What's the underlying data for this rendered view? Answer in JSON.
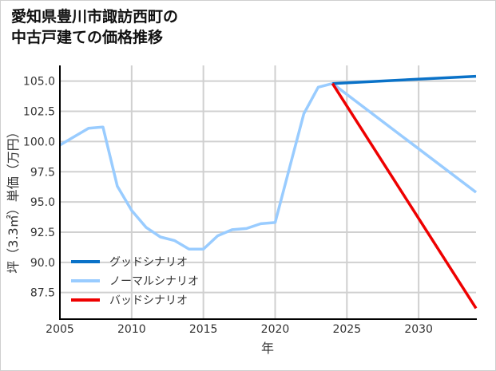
{
  "title_line1": "愛知県豊川市諏訪西町の",
  "title_line2": "中古戸建ての価格推移",
  "chart_data": {
    "type": "line",
    "title": "愛知県豊川市諏訪西町の中古戸建ての価格推移",
    "xlabel": "年",
    "ylabel": "坪（3.3㎡）単価（万円）",
    "xlim": [
      2005,
      2034
    ],
    "ylim": [
      85.3,
      106.3
    ],
    "x_ticks": [
      2005,
      2010,
      2015,
      2020,
      2025,
      2030
    ],
    "y_ticks": [
      87.5,
      90.0,
      92.5,
      95.0,
      97.5,
      100.0,
      102.5,
      105.0
    ],
    "x_tick_labels": [
      "2005",
      "2010",
      "2015",
      "2020",
      "2025",
      "2030"
    ],
    "y_tick_labels": [
      "87.5",
      "90.0",
      "92.5",
      "95.0",
      "97.5",
      "100.0",
      "102.5",
      "105.0"
    ],
    "grid": true,
    "legend_position": "lower left",
    "series": [
      {
        "name": "グッドシナリオ",
        "color": "#0a72c8",
        "x": [
          2024,
          2034
        ],
        "values": [
          104.8,
          105.4
        ]
      },
      {
        "name": "ノーマルシナリオ",
        "color": "#99ccff",
        "x": [
          2005,
          2006,
          2007,
          2008,
          2009,
          2010,
          2011,
          2012,
          2013,
          2014,
          2015,
          2016,
          2017,
          2018,
          2019,
          2020,
          2021,
          2022,
          2023,
          2024,
          2034
        ],
        "values": [
          99.7,
          100.4,
          101.1,
          101.2,
          96.3,
          94.3,
          92.9,
          92.1,
          91.8,
          91.1,
          91.1,
          92.2,
          92.7,
          92.8,
          93.2,
          93.3,
          97.8,
          102.3,
          104.5,
          104.8,
          95.8
        ]
      },
      {
        "name": "バッドシナリオ",
        "color": "#ee0000",
        "x": [
          2024,
          2034
        ],
        "values": [
          104.8,
          86.2
        ]
      }
    ]
  }
}
